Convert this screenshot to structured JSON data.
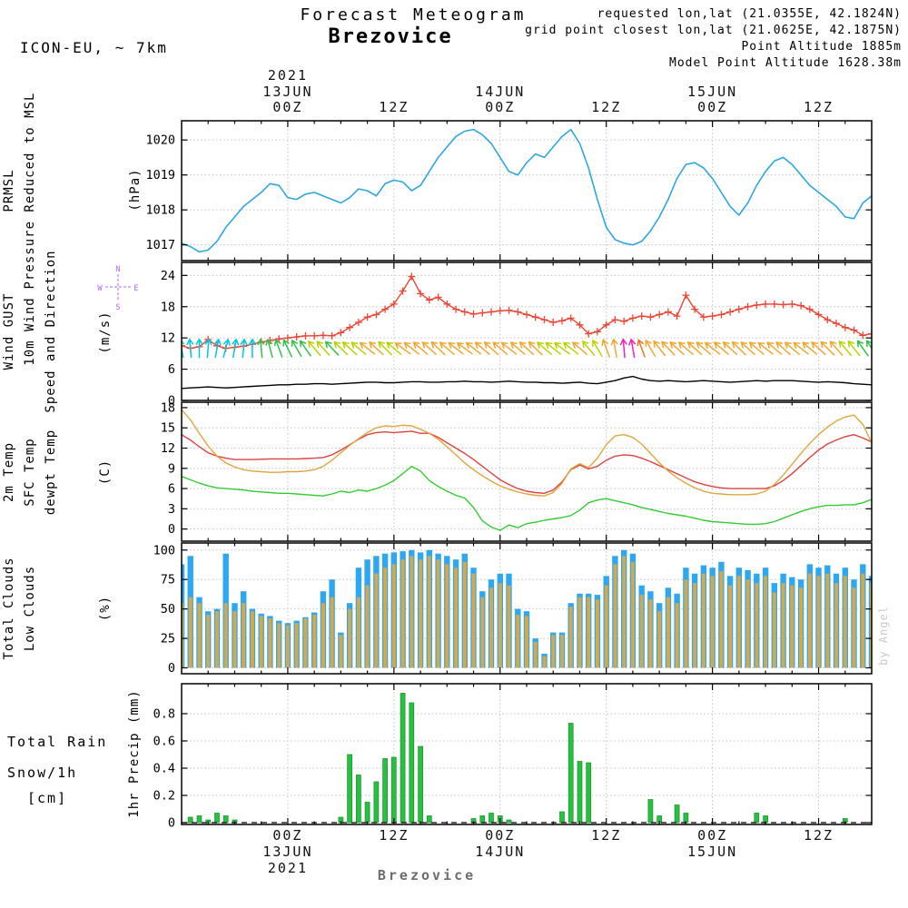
{
  "header": {
    "title": "Forecast Meteogram",
    "station": "Brezovice",
    "model": "ICON-EU, ~ 7km",
    "requested": "requested lon,lat (21.0355E, 42.1824N)",
    "grid_point": "grid point closest lon,lat (21.0625E, 42.1875N)",
    "point_altitude": "Point Altitude 1885m",
    "model_point_altitude": "Model Point Altitude 1628.38m",
    "watermark": "by Angel",
    "footer_station": "Brezovice"
  },
  "labels": {
    "pressure_short": "PRMSL",
    "pressure_long": "Pressure Reduced to MSL",
    "pressure_unit": "(hPa)",
    "wind_gust": "Wind GUST",
    "wind_10m": "10m Wind",
    "wind_speed_dir": "Speed and Direction",
    "wind_unit": "(m/s)",
    "temp_2m": "2m Temp",
    "temp_sfc": "SFC Temp",
    "temp_dew": "dewpt Temp",
    "temp_unit": "(C)",
    "clouds_total": "Total Clouds",
    "clouds_low": "Low Clouds",
    "clouds_unit": "(%)",
    "precip_rain": "Total  Rain",
    "precip_snow": "Snow/1h",
    "precip_snow_unit": "[cm]",
    "precip_axis": "1hr Precip (mm)",
    "compass_n": "N",
    "compass_e": "E",
    "compass_s": "S",
    "compass_w": "W"
  },
  "colors": {
    "title": "#f3c98b",
    "accent_purple": "#b06aff",
    "geo_purple": "#8770ff",
    "alt_purple": "#c050f0",
    "pressure": "#2da7e0",
    "gust": "#ee4433",
    "wind10m": "#000000",
    "green": "#00b34a",
    "temp_2m": "#e04040",
    "temp_sfc": "#dfa63e",
    "temp_dew": "#33cc33",
    "clouds_total": "#2da7e0",
    "clouds_low": "#d4a84c",
    "rain": "#28c040",
    "snow": "#4466dd",
    "watermark": "#c9c9c9",
    "footer": "#6d6d6d"
  },
  "x_axis": {
    "start": "2021-06-12 12Z",
    "step_hours": 1,
    "points": 79,
    "top": {
      "year": "2021",
      "day_ticks": [
        {
          "h": 12,
          "label": "13JUN"
        },
        {
          "h": 36,
          "label": "14JUN"
        },
        {
          "h": 60,
          "label": "15JUN"
        }
      ],
      "hour_ticks": [
        {
          "h": 12,
          "label": "00Z"
        },
        {
          "h": 24,
          "label": "12Z"
        },
        {
          "h": 36,
          "label": "00Z"
        },
        {
          "h": 48,
          "label": "12Z"
        },
        {
          "h": 60,
          "label": "00Z"
        },
        {
          "h": 72,
          "label": "12Z"
        }
      ]
    },
    "bottom": {
      "year": "2021",
      "day_ticks": [
        {
          "h": 12,
          "label": "13JUN"
        },
        {
          "h": 36,
          "label": "14JUN"
        },
        {
          "h": 60,
          "label": "15JUN"
        }
      ],
      "hour_ticks": [
        {
          "h": 12,
          "label": "00Z"
        },
        {
          "h": 24,
          "label": "12Z"
        },
        {
          "h": 36,
          "label": "00Z"
        },
        {
          "h": 48,
          "label": "12Z"
        },
        {
          "h": 60,
          "label": "00Z"
        },
        {
          "h": 72,
          "label": "12Z"
        }
      ]
    }
  },
  "chart_data": [
    {
      "id": "pressure",
      "type": "line",
      "title": "PRMSL Pressure Reduced to MSL",
      "ylabel": "hPa",
      "ylim": [
        1016.55,
        1020.55
      ],
      "yticks": [
        1017,
        1018,
        1019,
        1020
      ],
      "series": [
        {
          "name": "PRMSL",
          "color": "#2da7e0",
          "values": [
            1017.05,
            1016.95,
            1016.8,
            1016.85,
            1017.1,
            1017.5,
            1017.8,
            1018.1,
            1018.3,
            1018.5,
            1018.75,
            1018.7,
            1018.35,
            1018.3,
            1018.45,
            1018.5,
            1018.4,
            1018.3,
            1018.2,
            1018.35,
            1018.6,
            1018.55,
            1018.4,
            1018.75,
            1018.85,
            1018.8,
            1018.55,
            1018.7,
            1019.1,
            1019.5,
            1019.8,
            1020.1,
            1020.25,
            1020.3,
            1020.15,
            1019.9,
            1019.5,
            1019.1,
            1019.0,
            1019.35,
            1019.6,
            1019.5,
            1019.8,
            1020.1,
            1020.3,
            1019.9,
            1019.2,
            1018.3,
            1017.5,
            1017.15,
            1017.05,
            1017.0,
            1017.1,
            1017.4,
            1017.8,
            1018.3,
            1018.9,
            1019.3,
            1019.35,
            1019.2,
            1018.9,
            1018.5,
            1018.1,
            1017.85,
            1018.2,
            1018.7,
            1019.1,
            1019.4,
            1019.5,
            1019.3,
            1019.0,
            1018.7,
            1018.5,
            1018.3,
            1018.1,
            1017.8,
            1017.75,
            1018.2,
            1018.4
          ]
        }
      ]
    },
    {
      "id": "wind",
      "type": "line",
      "title": "Wind GUST / 10m Wind Speed and Direction",
      "ylabel": "m/s",
      "ylim": [
        0,
        26.5
      ],
      "yticks": [
        0,
        6,
        12,
        18,
        24
      ],
      "arrow_row_value": 10,
      "speed_color_scale": [
        {
          "max": 2.7,
          "color": "#00c8e0"
        },
        {
          "max": 3.1,
          "color": "#30c24a"
        },
        {
          "max": 3.45,
          "color": "#b8d400"
        },
        {
          "max": 3.8,
          "color": "#f0a830"
        },
        {
          "max": 4.25,
          "color": "#f07820"
        },
        {
          "max": 99,
          "color": "#ee22bb"
        }
      ],
      "wind_dir_from_deg": [
        350,
        355,
        0,
        5,
        10,
        15,
        10,
        5,
        0,
        355,
        345,
        340,
        335,
        330,
        325,
        320,
        318,
        316,
        314,
        312,
        310,
        308,
        312,
        315,
        310,
        306,
        308,
        310,
        312,
        314,
        310,
        308,
        306,
        308,
        310,
        312,
        310,
        308,
        310,
        312,
        314,
        310,
        308,
        306,
        308,
        310,
        320,
        330,
        340,
        350,
        355,
        350,
        340,
        330,
        322,
        316,
        312,
        310,
        312,
        310,
        308,
        310,
        312,
        314,
        312,
        310,
        308,
        310,
        312,
        310,
        308,
        310,
        312,
        315,
        318,
        320,
        322,
        325,
        328
      ],
      "series": [
        {
          "name": "Wind GUST",
          "color": "#ee4433",
          "marker": "+",
          "values": [
            10.5,
            10.0,
            10.3,
            11.7,
            10.5,
            10.0,
            10.2,
            10.4,
            10.8,
            11.2,
            11.5,
            11.8,
            12.0,
            12.2,
            12.4,
            12.4,
            12.5,
            12.4,
            13.0,
            14.0,
            15.0,
            16.0,
            16.5,
            17.5,
            18.5,
            21.0,
            23.8,
            20.5,
            19.3,
            19.8,
            18.5,
            17.5,
            17.0,
            16.6,
            16.8,
            17.0,
            17.2,
            17.3,
            17.0,
            16.5,
            16.0,
            15.5,
            15.0,
            15.3,
            15.8,
            14.5,
            12.8,
            13.2,
            14.5,
            15.5,
            15.2,
            15.8,
            16.2,
            16.0,
            16.5,
            17.0,
            16.2,
            20.2,
            17.5,
            16.0,
            16.2,
            16.5,
            17.0,
            17.5,
            18.0,
            18.3,
            18.5,
            18.5,
            18.4,
            18.5,
            18.2,
            17.5,
            16.5,
            15.5,
            14.8,
            14.0,
            13.5,
            12.5,
            12.8
          ]
        },
        {
          "name": "10m Wind Speed",
          "color": "#000000",
          "values": [
            2.3,
            2.4,
            2.5,
            2.6,
            2.5,
            2.4,
            2.5,
            2.6,
            2.7,
            2.8,
            2.9,
            3.0,
            3.0,
            3.1,
            3.1,
            3.2,
            3.2,
            3.1,
            3.2,
            3.3,
            3.4,
            3.5,
            3.5,
            3.4,
            3.4,
            3.5,
            3.6,
            3.6,
            3.5,
            3.5,
            3.6,
            3.6,
            3.7,
            3.6,
            3.6,
            3.5,
            3.6,
            3.7,
            3.6,
            3.5,
            3.5,
            3.4,
            3.4,
            3.3,
            3.4,
            3.5,
            3.3,
            3.2,
            3.5,
            3.8,
            4.3,
            4.6,
            4.1,
            3.8,
            3.7,
            3.8,
            3.7,
            3.6,
            3.7,
            3.8,
            3.7,
            3.6,
            3.5,
            3.6,
            3.7,
            3.8,
            3.7,
            3.8,
            3.8,
            3.8,
            3.7,
            3.6,
            3.5,
            3.6,
            3.5,
            3.4,
            3.2,
            3.1,
            3.0
          ]
        }
      ]
    },
    {
      "id": "temp",
      "type": "line",
      "title": "2m Temp / SFC Temp / dewpt Temp",
      "ylabel": "C",
      "ylim": [
        -1.8,
        18.8
      ],
      "yticks": [
        0,
        3,
        6,
        9,
        12,
        15,
        18
      ],
      "series": [
        {
          "name": "2m Temp",
          "color": "#e04040",
          "values": [
            14.0,
            13.2,
            12.2,
            11.3,
            10.8,
            10.5,
            10.3,
            10.3,
            10.3,
            10.35,
            10.4,
            10.4,
            10.4,
            10.4,
            10.45,
            10.5,
            10.6,
            11.0,
            11.7,
            12.5,
            13.3,
            14.0,
            14.3,
            14.4,
            14.3,
            14.4,
            14.5,
            14.2,
            14.2,
            13.6,
            12.8,
            12.0,
            11.2,
            10.3,
            9.3,
            8.3,
            7.3,
            6.6,
            6.0,
            5.6,
            5.4,
            5.3,
            5.8,
            7.0,
            8.8,
            9.5,
            8.9,
            9.3,
            10.2,
            10.8,
            11.0,
            10.9,
            10.5,
            10.0,
            9.4,
            8.8,
            8.2,
            7.6,
            7.0,
            6.6,
            6.3,
            6.1,
            6.0,
            6.0,
            6.0,
            6.0,
            6.0,
            6.4,
            7.2,
            8.2,
            9.4,
            10.6,
            11.7,
            12.6,
            13.2,
            13.7,
            14.0,
            13.5,
            12.9
          ]
        },
        {
          "name": "SFC Temp",
          "color": "#dfa63e",
          "values": [
            17.7,
            16.2,
            14.2,
            12.3,
            10.8,
            9.8,
            9.2,
            8.8,
            8.6,
            8.5,
            8.4,
            8.4,
            8.5,
            8.5,
            8.6,
            8.8,
            9.3,
            10.2,
            11.3,
            12.4,
            13.4,
            14.3,
            15.0,
            15.3,
            15.2,
            15.4,
            15.3,
            14.8,
            14.2,
            13.3,
            12.2,
            11.0,
            9.8,
            8.8,
            7.9,
            7.1,
            6.4,
            5.9,
            5.5,
            5.2,
            5.0,
            4.9,
            5.4,
            6.8,
            8.9,
            9.7,
            9.1,
            10.5,
            12.5,
            13.8,
            14.0,
            13.6,
            12.6,
            11.2,
            9.8,
            8.6,
            7.6,
            6.8,
            6.1,
            5.6,
            5.3,
            5.2,
            5.1,
            5.1,
            5.1,
            5.2,
            5.6,
            6.6,
            8.0,
            9.6,
            11.2,
            12.7,
            14.0,
            15.1,
            16.0,
            16.6,
            16.9,
            15.5,
            12.8
          ]
        },
        {
          "name": "dewpt Temp",
          "color": "#33cc33",
          "values": [
            7.8,
            7.3,
            6.8,
            6.4,
            6.1,
            6.0,
            5.9,
            5.8,
            5.6,
            5.5,
            5.4,
            5.3,
            5.3,
            5.2,
            5.1,
            5.0,
            4.9,
            5.2,
            5.6,
            5.4,
            5.8,
            5.6,
            6.0,
            6.5,
            7.2,
            8.2,
            9.3,
            8.6,
            7.2,
            6.3,
            5.6,
            5.0,
            4.6,
            3.2,
            1.2,
            0.3,
            -0.2,
            0.6,
            0.2,
            0.8,
            1.0,
            1.3,
            1.5,
            1.7,
            2.0,
            2.8,
            3.9,
            4.3,
            4.5,
            4.2,
            3.9,
            3.6,
            3.2,
            2.9,
            2.6,
            2.3,
            2.1,
            1.9,
            1.6,
            1.3,
            1.1,
            1.0,
            0.9,
            0.8,
            0.7,
            0.7,
            0.8,
            1.1,
            1.6,
            2.1,
            2.6,
            3.0,
            3.3,
            3.5,
            3.5,
            3.6,
            3.6,
            3.9,
            4.4
          ]
        }
      ]
    },
    {
      "id": "clouds",
      "type": "bar",
      "title": "Total Clouds / Low Clouds",
      "ylabel": "%",
      "ylim": [
        -5,
        106
      ],
      "yticks": [
        0,
        25,
        50,
        75,
        100
      ],
      "series": [
        {
          "name": "Total Clouds",
          "color": "#2da7f0",
          "values": [
            88,
            95,
            60,
            48,
            50,
            97,
            55,
            65,
            50,
            46,
            44,
            40,
            38,
            40,
            43,
            47,
            65,
            75,
            30,
            55,
            85,
            92,
            95,
            97,
            98,
            99,
            100,
            98,
            100,
            97,
            95,
            92,
            97,
            85,
            65,
            75,
            80,
            80,
            50,
            48,
            25,
            12,
            30,
            30,
            55,
            63,
            63,
            62,
            78,
            95,
            100,
            97,
            70,
            65,
            55,
            68,
            63,
            85,
            80,
            87,
            85,
            90,
            78,
            85,
            83,
            80,
            85,
            72,
            80,
            77,
            75,
            88,
            85,
            87,
            80,
            85,
            75,
            88,
            78
          ]
        },
        {
          "name": "Low Clouds",
          "color": "#d4a84c",
          "values": [
            55,
            60,
            55,
            45,
            48,
            55,
            48,
            55,
            48,
            44,
            42,
            38,
            36,
            38,
            42,
            45,
            55,
            60,
            28,
            50,
            60,
            70,
            80,
            85,
            88,
            92,
            95,
            92,
            95,
            92,
            88,
            85,
            90,
            80,
            60,
            68,
            72,
            70,
            45,
            44,
            22,
            10,
            28,
            28,
            52,
            60,
            60,
            58,
            70,
            88,
            95,
            90,
            62,
            58,
            48,
            60,
            55,
            75,
            72,
            80,
            78,
            82,
            70,
            78,
            75,
            72,
            78,
            64,
            72,
            70,
            68,
            80,
            78,
            80,
            72,
            78,
            68,
            80,
            72
          ]
        }
      ]
    },
    {
      "id": "precip",
      "type": "bar",
      "title": "1hr Precip (mm) - Rain",
      "ylabel": "1hr Precip (mm)",
      "ylim": [
        0,
        1.02
      ],
      "yticks": [
        0,
        0.2,
        0.4,
        0.6,
        0.8
      ],
      "series": [
        {
          "name": "Rain 1h (mm)",
          "color": "#28c040",
          "values": [
            0,
            0.04,
            0.05,
            0.02,
            0.07,
            0.05,
            0.02,
            0,
            0,
            0,
            0,
            0,
            0,
            0,
            0,
            0,
            0,
            0,
            0.04,
            0.5,
            0.35,
            0.15,
            0.3,
            0.47,
            0.48,
            0.95,
            0.88,
            0.56,
            0.05,
            0,
            0,
            0,
            0,
            0.03,
            0.05,
            0.07,
            0.05,
            0.02,
            0,
            0,
            0,
            0,
            0,
            0.08,
            0.73,
            0.45,
            0.44,
            0,
            0,
            0,
            0,
            0,
            0,
            0.17,
            0.05,
            0,
            0.13,
            0.07,
            0,
            0,
            0,
            0,
            0,
            0,
            0,
            0.07,
            0.05,
            0,
            0,
            0,
            0,
            0,
            0,
            0,
            0,
            0.03,
            0,
            0,
            0
          ]
        }
      ]
    }
  ]
}
